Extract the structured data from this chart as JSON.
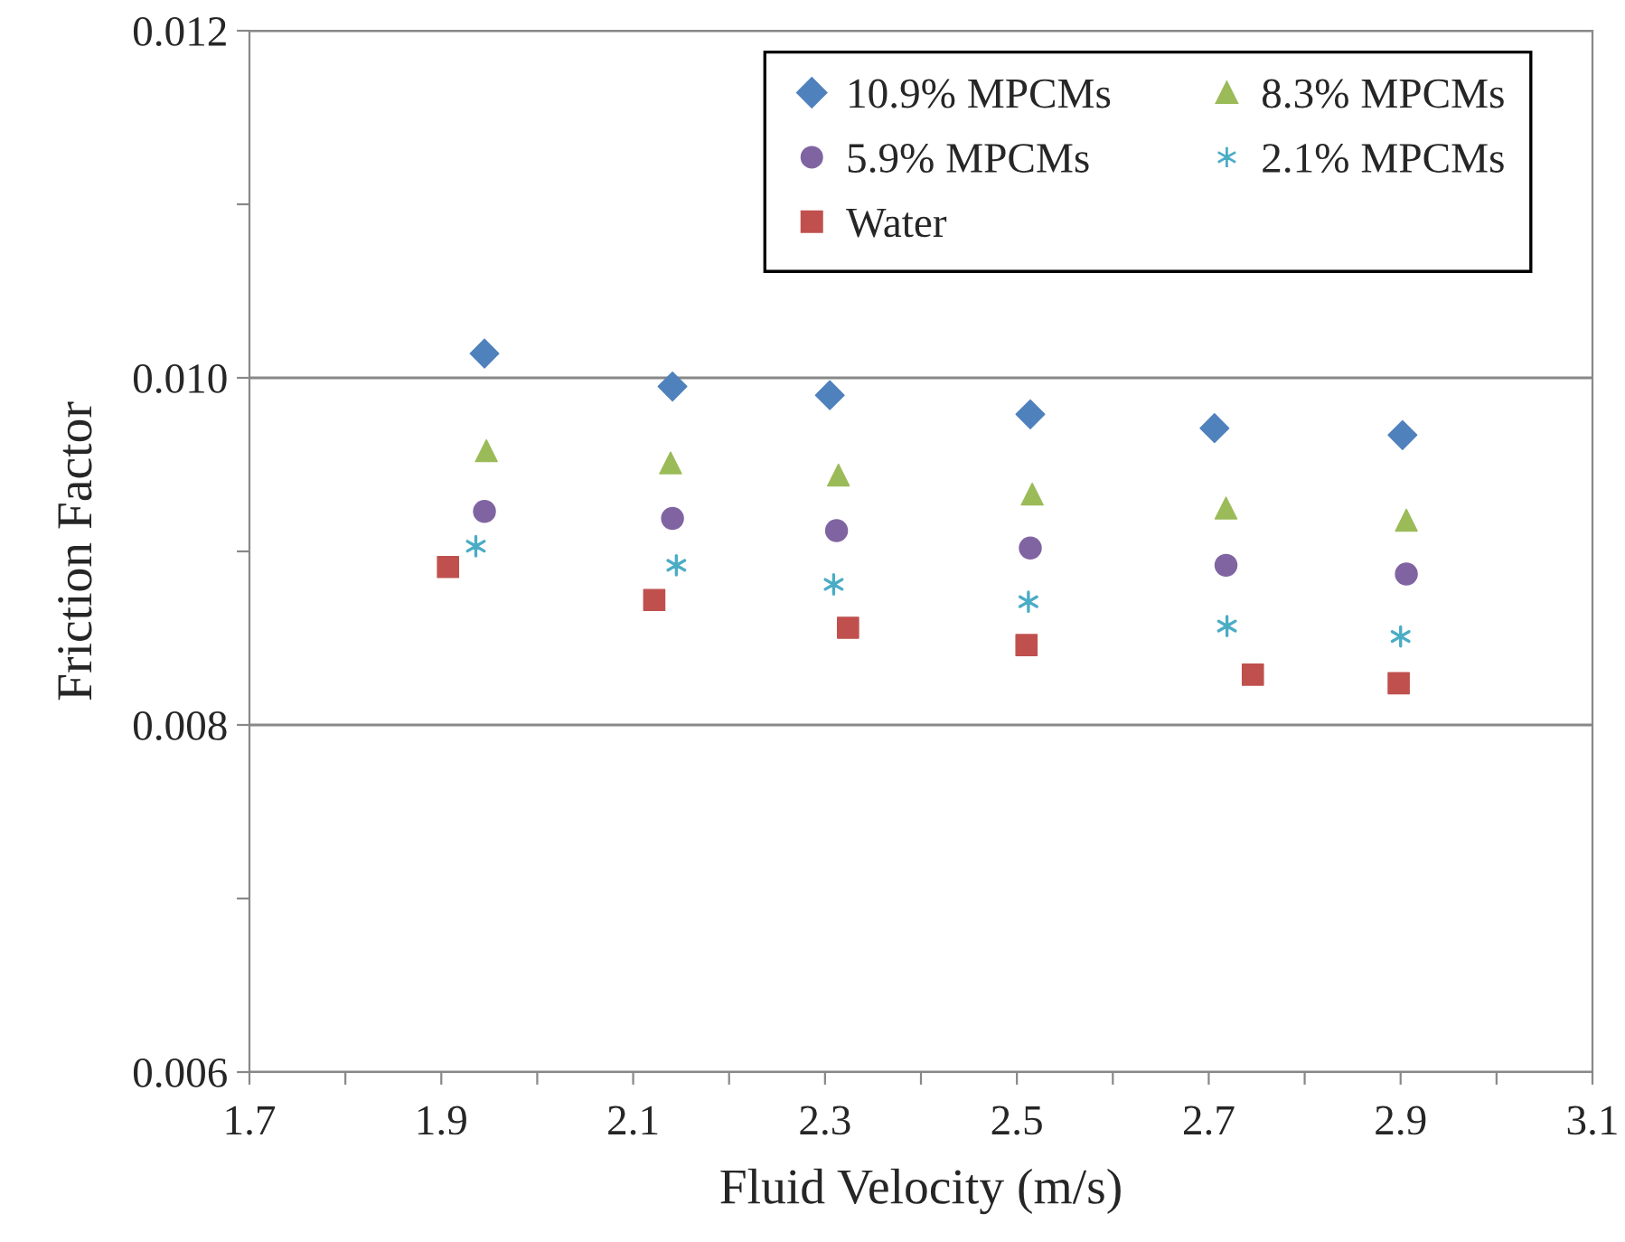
{
  "chart_data": {
    "type": "scatter",
    "xlabel": "Fluid Velocity (m/s)",
    "ylabel": "Friction Factor",
    "xlim": [
      1.7,
      3.1
    ],
    "ylim": [
      0.006,
      0.012
    ],
    "xticks": [
      1.7,
      {
        "value": 1.8,
        "label": null
      },
      1.9,
      {
        "value": 2.0,
        "label": null
      },
      2.1,
      {
        "value": 2.2,
        "label": null
      },
      2.3,
      {
        "value": 2.4,
        "label": null
      },
      2.5,
      {
        "value": 2.6,
        "label": null
      },
      2.7,
      {
        "value": 2.8,
        "label": null
      },
      2.9,
      {
        "value": 3.0,
        "label": null
      },
      3.1
    ],
    "yticks": [
      {
        "value": 0.006,
        "label": "0.006"
      },
      {
        "value": 0.007,
        "label": null
      },
      {
        "value": 0.008,
        "label": "0.008"
      },
      {
        "value": 0.009,
        "label": null
      },
      {
        "value": 0.01,
        "label": "0.010"
      },
      {
        "value": 0.011,
        "label": null
      },
      {
        "value": 0.012,
        "label": "0.012"
      }
    ],
    "grid": "y",
    "legend": "top right",
    "series": [
      {
        "name": "10.9% MPCMs",
        "color": "#4f81bd",
        "marker": "diamond",
        "x": [
          1.945,
          2.141,
          2.305,
          2.514,
          2.706,
          2.902
        ],
        "values": [
          0.01014,
          0.00995,
          0.0099,
          0.00979,
          0.00971,
          0.00967
        ]
      },
      {
        "name": "8.3% MPCMs",
        "color": "#9bbb59",
        "marker": "triangle",
        "x": [
          1.947,
          2.139,
          2.314,
          2.516,
          2.718,
          2.906
        ],
        "values": [
          0.00958,
          0.00951,
          0.00944,
          0.00933,
          0.00925,
          0.00918
        ]
      },
      {
        "name": "5.9% MPCMs",
        "color": "#8064a2",
        "marker": "circle",
        "x": [
          1.945,
          2.141,
          2.312,
          2.514,
          2.718,
          2.906
        ],
        "values": [
          0.00923,
          0.00919,
          0.00912,
          0.00902,
          0.00892,
          0.00887
        ]
      },
      {
        "name": "2.1% MPCMs",
        "color": "#4bacc6",
        "marker": "cross",
        "x": [
          1.936,
          2.145,
          2.309,
          2.512,
          2.719,
          2.9
        ],
        "values": [
          0.00903,
          0.00892,
          0.00881,
          0.00871,
          0.00857,
          0.00851
        ]
      },
      {
        "name": "Water",
        "color": "#c0504d",
        "marker": "square",
        "x": [
          1.907,
          2.122,
          2.324,
          2.51,
          2.746,
          2.898
        ],
        "values": [
          0.00891,
          0.00872,
          0.00856,
          0.00846,
          0.00829,
          0.00824
        ]
      }
    ]
  }
}
